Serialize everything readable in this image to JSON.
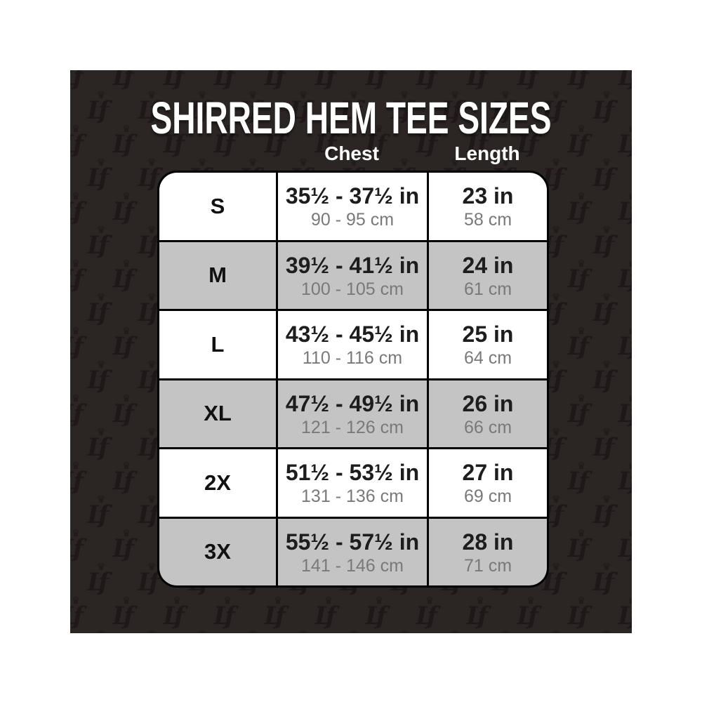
{
  "title": "SHIRRED HEM TEE SIZES",
  "card": {
    "pattern": {
      "monogram": "Lf",
      "crown": "♛",
      "color": "#1e1918"
    }
  },
  "table": {
    "headers": {
      "chest": "Chest",
      "length": "Length"
    },
    "rows": [
      {
        "size": "S",
        "chest_in": "35½ - 37½ in",
        "chest_cm": "90 - 95 cm",
        "length_in": "23 in",
        "length_cm": "58 cm",
        "shaded": false
      },
      {
        "size": "M",
        "chest_in": "39½ - 41½ in",
        "chest_cm": "100 - 105 cm",
        "length_in": "24 in",
        "length_cm": "61 cm",
        "shaded": true
      },
      {
        "size": "L",
        "chest_in": "43½ - 45½ in",
        "chest_cm": "110 - 116 cm",
        "length_in": "25 in",
        "length_cm": "64 cm",
        "shaded": false
      },
      {
        "size": "XL",
        "chest_in": "47½ - 49½ in",
        "chest_cm": "121 - 126 cm",
        "length_in": "26 in",
        "length_cm": "66 cm",
        "shaded": true
      },
      {
        "size": "2X",
        "chest_in": "51½ - 53½ in",
        "chest_cm": "131 - 136 cm",
        "length_in": "27 in",
        "length_cm": "69 cm",
        "shaded": false
      },
      {
        "size": "3X",
        "chest_in": "55½ - 57½ in",
        "chest_cm": "141 - 146 cm",
        "length_in": "28 in",
        "length_cm": "71 cm",
        "shaded": true
      }
    ]
  },
  "colors": {
    "card_background": "#2b2524",
    "row_light": "#ffffff",
    "row_shaded": "#c4c4c4",
    "table_border": "#000000",
    "primary_text": "#1d1d1d",
    "secondary_text": "#7a787b",
    "header_text": "#ffffff"
  }
}
